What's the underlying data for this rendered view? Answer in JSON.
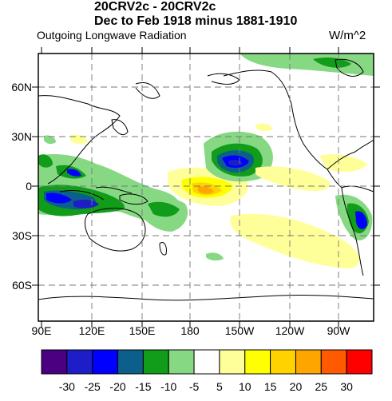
{
  "title": {
    "line1": "20CRV2c - 20CRV2c",
    "line2": "Dec to Feb 1918 minus 1881-1910"
  },
  "subtitle": "Outgoing Longwave Radiation",
  "units": "W/m^2",
  "map": {
    "lat_range": [
      -90,
      90
    ],
    "lon_range": [
      90,
      290
    ],
    "lat_ticks": [
      "60N",
      "30N",
      "0",
      "30S",
      "60S"
    ],
    "lon_ticks": [
      "90E",
      "120E",
      "150E",
      "180",
      "150W",
      "120W",
      "90W"
    ],
    "gridlines": "dashed"
  },
  "colorbar": {
    "labels": [
      "-30",
      "-25",
      "-20",
      "-15",
      "-10",
      "-5",
      "5",
      "10",
      "15",
      "20",
      "25",
      "30"
    ],
    "colors": [
      "#4b0082",
      "#1e1ec8",
      "#0000ff",
      "#0b5f8a",
      "#119c1a",
      "#86d883",
      "#ffffff",
      "#ffff99",
      "#ffff00",
      "#ffd200",
      "#ffa500",
      "#ff5a00",
      "#ff0000"
    ]
  }
}
